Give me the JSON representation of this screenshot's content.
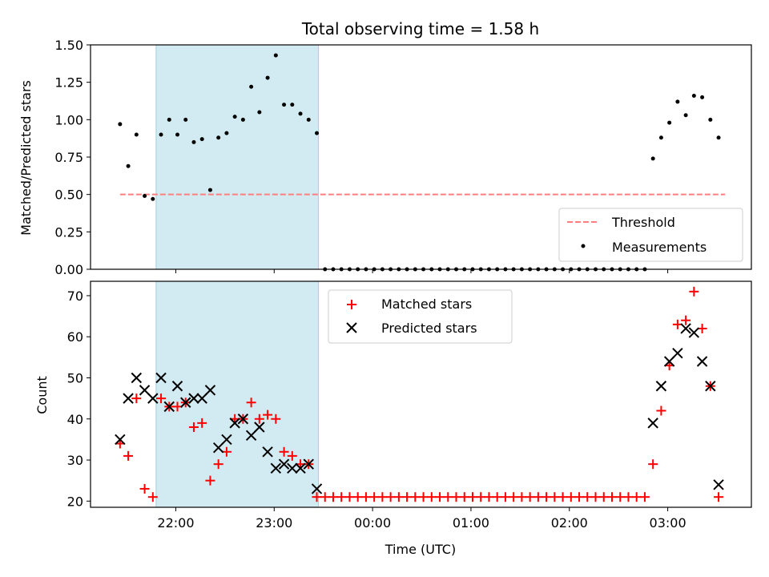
{
  "chart_data": [
    {
      "type": "scatter",
      "title": "Total observing time = 1.58 h",
      "ylabel": "Matched/Predicted stars",
      "ylim": [
        0,
        1.5
      ],
      "yticks": [
        "0.00",
        "0.25",
        "0.50",
        "0.75",
        "1.00",
        "1.25",
        "1.50"
      ],
      "xticks": [
        "22:00",
        "23:00",
        "00:00",
        "01:00",
        "02:00",
        "03:00"
      ],
      "xlim": [
        "21:08",
        "03:51"
      ],
      "shaded_span": [
        "21:48",
        "23:27"
      ],
      "shaded_color": "#add8e6",
      "threshold": {
        "name": "Threshold",
        "value": 0.5,
        "x_range": [
          "21:26",
          "03:35"
        ],
        "color": "#ff7f7f",
        "style": "dashed"
      },
      "series": [
        {
          "name": "Measurements",
          "marker": "dot",
          "color": "#000000",
          "points": [
            [
              "21:26",
              0.97
            ],
            [
              "21:31",
              0.69
            ],
            [
              "21:36",
              0.9
            ],
            [
              "21:41",
              0.49
            ],
            [
              "21:46",
              0.47
            ],
            [
              "21:51",
              0.9
            ],
            [
              "21:56",
              1.0
            ],
            [
              "22:01",
              0.9
            ],
            [
              "22:06",
              1.0
            ],
            [
              "22:11",
              0.85
            ],
            [
              "22:16",
              0.87
            ],
            [
              "22:21",
              0.53
            ],
            [
              "22:26",
              0.88
            ],
            [
              "22:31",
              0.91
            ],
            [
              "22:36",
              1.02
            ],
            [
              "22:41",
              1.0
            ],
            [
              "22:46",
              1.22
            ],
            [
              "22:51",
              1.05
            ],
            [
              "22:56",
              1.28
            ],
            [
              "23:01",
              1.43
            ],
            [
              "23:06",
              1.1
            ],
            [
              "23:11",
              1.1
            ],
            [
              "23:16",
              1.04
            ],
            [
              "23:21",
              1.0
            ],
            [
              "23:26",
              0.91
            ],
            [
              "23:31",
              0.0
            ],
            [
              "23:36",
              0.0
            ],
            [
              "23:41",
              0.0
            ],
            [
              "23:46",
              0.0
            ],
            [
              "23:51",
              0.0
            ],
            [
              "23:56",
              0.0
            ],
            [
              "00:01",
              0.0
            ],
            [
              "00:06",
              0.0
            ],
            [
              "00:11",
              0.0
            ],
            [
              "00:16",
              0.0
            ],
            [
              "00:21",
              0.0
            ],
            [
              "00:26",
              0.0
            ],
            [
              "00:31",
              0.0
            ],
            [
              "00:36",
              0.0
            ],
            [
              "00:41",
              0.0
            ],
            [
              "00:46",
              0.0
            ],
            [
              "00:51",
              0.0
            ],
            [
              "00:56",
              0.0
            ],
            [
              "01:01",
              0.0
            ],
            [
              "01:06",
              0.0
            ],
            [
              "01:11",
              0.0
            ],
            [
              "01:16",
              0.0
            ],
            [
              "01:21",
              0.0
            ],
            [
              "01:26",
              0.0
            ],
            [
              "01:31",
              0.0
            ],
            [
              "01:36",
              0.0
            ],
            [
              "01:41",
              0.0
            ],
            [
              "01:46",
              0.0
            ],
            [
              "01:51",
              0.0
            ],
            [
              "01:56",
              0.0
            ],
            [
              "02:01",
              0.0
            ],
            [
              "02:06",
              0.0
            ],
            [
              "02:11",
              0.0
            ],
            [
              "02:16",
              0.0
            ],
            [
              "02:21",
              0.0
            ],
            [
              "02:26",
              0.0
            ],
            [
              "02:31",
              0.0
            ],
            [
              "02:36",
              0.0
            ],
            [
              "02:41",
              0.0
            ],
            [
              "02:46",
              0.0
            ],
            [
              "02:51",
              0.74
            ],
            [
              "02:56",
              0.88
            ],
            [
              "03:01",
              0.98
            ],
            [
              "03:06",
              1.12
            ],
            [
              "03:11",
              1.03
            ],
            [
              "03:16",
              1.16
            ],
            [
              "03:21",
              1.15
            ],
            [
              "03:26",
              1.0
            ],
            [
              "03:31",
              0.88
            ]
          ]
        }
      ],
      "legend": {
        "position": "lower-right",
        "entries": [
          "Threshold",
          "Measurements"
        ]
      }
    },
    {
      "type": "scatter",
      "xlabel": "Time (UTC)",
      "ylabel": "Count",
      "ylim": [
        18.5,
        73.5
      ],
      "yticks": [
        "20",
        "30",
        "40",
        "50",
        "60",
        "70"
      ],
      "xticks": [
        "22:00",
        "23:00",
        "00:00",
        "01:00",
        "02:00",
        "03:00"
      ],
      "xlim": [
        "21:08",
        "03:51"
      ],
      "shaded_span": [
        "21:48",
        "23:27"
      ],
      "shaded_color": "#add8e6",
      "series": [
        {
          "name": "Matched stars",
          "marker": "plus",
          "color": "#ff0000",
          "points": [
            [
              "21:26",
              34
            ],
            [
              "21:31",
              31
            ],
            [
              "21:36",
              45
            ],
            [
              "21:41",
              23
            ],
            [
              "21:46",
              21
            ],
            [
              "21:51",
              45
            ],
            [
              "21:56",
              43
            ],
            [
              "22:01",
              43
            ],
            [
              "22:06",
              44
            ],
            [
              "22:11",
              38
            ],
            [
              "22:16",
              39
            ],
            [
              "22:21",
              25
            ],
            [
              "22:26",
              29
            ],
            [
              "22:31",
              32
            ],
            [
              "22:36",
              40
            ],
            [
              "22:41",
              40
            ],
            [
              "22:46",
              44
            ],
            [
              "22:51",
              40
            ],
            [
              "22:56",
              41
            ],
            [
              "23:01",
              40
            ],
            [
              "23:06",
              32
            ],
            [
              "23:11",
              31
            ],
            [
              "23:16",
              29
            ],
            [
              "23:21",
              29
            ],
            [
              "23:26",
              21
            ],
            [
              "23:31",
              21
            ],
            [
              "23:36",
              21
            ],
            [
              "23:41",
              21
            ],
            [
              "23:46",
              21
            ],
            [
              "23:51",
              21
            ],
            [
              "23:56",
              21
            ],
            [
              "00:01",
              21
            ],
            [
              "00:06",
              21
            ],
            [
              "00:11",
              21
            ],
            [
              "00:16",
              21
            ],
            [
              "00:21",
              21
            ],
            [
              "00:26",
              21
            ],
            [
              "00:31",
              21
            ],
            [
              "00:36",
              21
            ],
            [
              "00:41",
              21
            ],
            [
              "00:46",
              21
            ],
            [
              "00:51",
              21
            ],
            [
              "00:56",
              21
            ],
            [
              "01:01",
              21
            ],
            [
              "01:06",
              21
            ],
            [
              "01:11",
              21
            ],
            [
              "01:16",
              21
            ],
            [
              "01:21",
              21
            ],
            [
              "01:26",
              21
            ],
            [
              "01:31",
              21
            ],
            [
              "01:36",
              21
            ],
            [
              "01:41",
              21
            ],
            [
              "01:46",
              21
            ],
            [
              "01:51",
              21
            ],
            [
              "01:56",
              21
            ],
            [
              "02:01",
              21
            ],
            [
              "02:06",
              21
            ],
            [
              "02:11",
              21
            ],
            [
              "02:16",
              21
            ],
            [
              "02:21",
              21
            ],
            [
              "02:26",
              21
            ],
            [
              "02:31",
              21
            ],
            [
              "02:36",
              21
            ],
            [
              "02:41",
              21
            ],
            [
              "02:46",
              21
            ],
            [
              "02:51",
              29
            ],
            [
              "02:56",
              42
            ],
            [
              "03:01",
              53
            ],
            [
              "03:06",
              63
            ],
            [
              "03:11",
              64
            ],
            [
              "03:16",
              71
            ],
            [
              "03:21",
              62
            ],
            [
              "03:26",
              48
            ],
            [
              "03:31",
              21
            ]
          ]
        },
        {
          "name": "Predicted stars",
          "marker": "x",
          "color": "#000000",
          "points": [
            [
              "21:26",
              35
            ],
            [
              "21:31",
              45
            ],
            [
              "21:36",
              50
            ],
            [
              "21:41",
              47
            ],
            [
              "21:46",
              45
            ],
            [
              "21:51",
              50
            ],
            [
              "21:56",
              43
            ],
            [
              "22:01",
              48
            ],
            [
              "22:06",
              44
            ],
            [
              "22:11",
              45
            ],
            [
              "22:16",
              45
            ],
            [
              "22:21",
              47
            ],
            [
              "22:26",
              33
            ],
            [
              "22:31",
              35
            ],
            [
              "22:36",
              39
            ],
            [
              "22:41",
              40
            ],
            [
              "22:46",
              36
            ],
            [
              "22:51",
              38
            ],
            [
              "22:56",
              32
            ],
            [
              "23:01",
              28
            ],
            [
              "23:06",
              29
            ],
            [
              "23:11",
              28
            ],
            [
              "23:16",
              28
            ],
            [
              "23:21",
              29
            ],
            [
              "23:26",
              23
            ],
            [
              "02:51",
              39
            ],
            [
              "02:56",
              48
            ],
            [
              "03:01",
              54
            ],
            [
              "03:06",
              56
            ],
            [
              "03:11",
              62
            ],
            [
              "03:16",
              61
            ],
            [
              "03:21",
              54
            ],
            [
              "03:26",
              48
            ],
            [
              "03:31",
              24
            ]
          ]
        }
      ],
      "legend": {
        "position": "upper-center",
        "entries": [
          "Matched stars",
          "Predicted stars"
        ]
      }
    }
  ]
}
